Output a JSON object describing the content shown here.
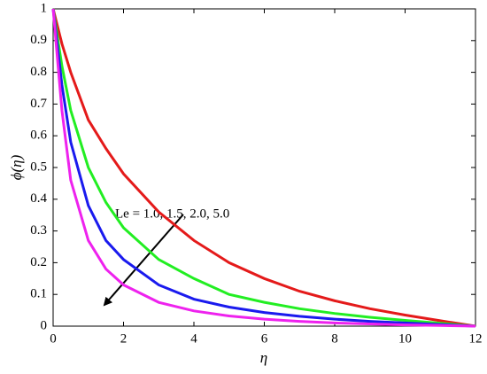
{
  "chart_data": {
    "type": "line",
    "xlabel": "η",
    "ylabel": "ϕ(η)",
    "annotation": "Le = 1.0, 1.5, 2.0, 5.0",
    "x": [
      0,
      0.25,
      0.5,
      1,
      1.5,
      2,
      3,
      4,
      5,
      6,
      7,
      8,
      9,
      10,
      11,
      12
    ],
    "series": [
      {
        "color": "#e41a1a",
        "values": [
          1,
          0.89,
          0.8,
          0.65,
          0.56,
          0.48,
          0.36,
          0.27,
          0.2,
          0.15,
          0.11,
          0.08,
          0.055,
          0.035,
          0.017,
          0
        ]
      },
      {
        "color": "#22ee22",
        "values": [
          1,
          0.82,
          0.68,
          0.5,
          0.39,
          0.31,
          0.21,
          0.15,
          0.1,
          0.075,
          0.055,
          0.04,
          0.028,
          0.018,
          0.009,
          0
        ]
      },
      {
        "color": "#1a1aee",
        "values": [
          1,
          0.76,
          0.58,
          0.38,
          0.27,
          0.21,
          0.13,
          0.085,
          0.06,
          0.043,
          0.031,
          0.022,
          0.015,
          0.01,
          0.005,
          0
        ]
      },
      {
        "color": "#ee22ee",
        "values": [
          1,
          0.68,
          0.46,
          0.27,
          0.18,
          0.13,
          0.075,
          0.048,
          0.032,
          0.022,
          0.015,
          0.01,
          0.007,
          0.004,
          0.002,
          0
        ]
      }
    ],
    "xlim": [
      0,
      12
    ],
    "ylim": [
      0,
      1
    ],
    "xticks": [
      0,
      2,
      4,
      6,
      8,
      10,
      12
    ],
    "yticks": [
      0,
      0.1,
      0.2,
      0.3,
      0.4,
      0.5,
      0.6,
      0.7,
      0.8,
      0.9,
      1
    ],
    "grid": false
  }
}
